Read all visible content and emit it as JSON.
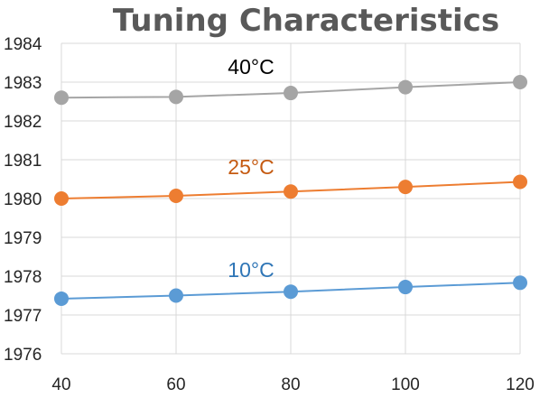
{
  "chart_data": {
    "type": "line",
    "title": "Tuning Characteristics",
    "xlabel": "",
    "ylabel": "",
    "x": [
      40,
      60,
      80,
      100,
      120
    ],
    "xlim": [
      40,
      120
    ],
    "ylim": [
      1976,
      1984
    ],
    "xticks": [
      "40",
      "60",
      "80",
      "100",
      "120"
    ],
    "yticks": [
      "1976",
      "1977",
      "1978",
      "1979",
      "1980",
      "1981",
      "1982",
      "1983",
      "1984"
    ],
    "grid": true,
    "legend": "none",
    "series": [
      {
        "name": "40°C",
        "color": "#a5a5a5",
        "label_color": "#000000",
        "values": [
          1982.6,
          1982.62,
          1982.72,
          1982.87,
          1983.0
        ]
      },
      {
        "name": "25°C",
        "color": "#ed7d31",
        "label_color": "#c55a11",
        "values": [
          1980.0,
          1980.07,
          1980.18,
          1980.3,
          1980.43
        ]
      },
      {
        "name": "10°C",
        "color": "#5b9bd5",
        "label_color": "#2e75b6",
        "values": [
          1977.42,
          1977.5,
          1977.6,
          1977.72,
          1977.83
        ]
      }
    ]
  }
}
